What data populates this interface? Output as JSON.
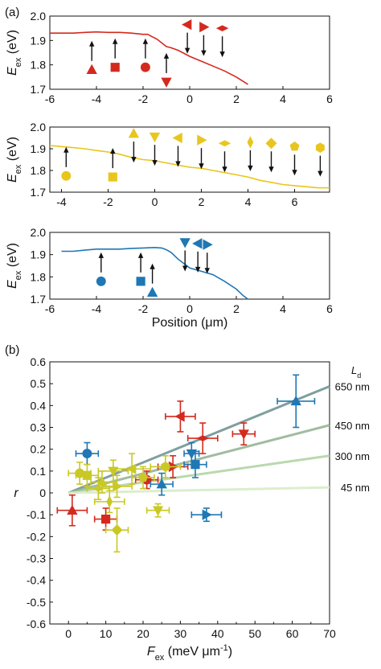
{
  "colors": {
    "red": "#d42a1e",
    "yellow": "#e9c61d",
    "blue": "#1f77b4",
    "yellowgreen": "#c9c826",
    "line_gray": "#7f9f9f"
  },
  "panel_labels": {
    "a": "(a)",
    "b": "(b)"
  },
  "chart_data": [
    {
      "type": "line",
      "title": "",
      "xlabel": "",
      "ylabel_main": "E",
      "ylabel_sub": "ex",
      "ylabel_unit": " (eV)",
      "xlim": [
        -6,
        6
      ],
      "ylim": [
        1.7,
        2.0
      ],
      "xticks": [
        -6,
        -4,
        -2,
        0,
        2,
        4,
        6
      ],
      "yticks": [
        "1.7",
        "1.8",
        "1.9",
        "2.0"
      ],
      "color": "#d42a1e",
      "x": [
        -6.0,
        -5.0,
        -4.5,
        -4.0,
        -3.5,
        -3.0,
        -2.5,
        -2.0,
        -1.8,
        -1.6,
        -1.4,
        -1.2,
        -1.0,
        -0.8,
        -0.5,
        -0.2,
        0.0,
        0.5,
        1.0,
        1.5,
        2.0,
        2.5
      ],
      "y": [
        1.93,
        1.93,
        1.933,
        1.935,
        1.933,
        1.933,
        1.93,
        1.925,
        1.925,
        1.915,
        1.905,
        1.89,
        1.875,
        1.87,
        1.86,
        1.845,
        1.835,
        1.815,
        1.795,
        1.775,
        1.75,
        1.72
      ],
      "markers": [
        {
          "x": -4.2,
          "y": 1.78,
          "shape": "triangle-up",
          "arrow": "up"
        },
        {
          "x": -3.2,
          "y": 1.79,
          "shape": "square",
          "arrow": "up"
        },
        {
          "x": -1.9,
          "y": 1.79,
          "shape": "circle",
          "arrow": "up"
        },
        {
          "x": -1.0,
          "y": 1.73,
          "shape": "triangle-down",
          "arrow": "up"
        },
        {
          "x": -0.1,
          "y": 1.965,
          "shape": "triangle-left",
          "arrow": "down"
        },
        {
          "x": 0.6,
          "y": 1.955,
          "shape": "triangle-right",
          "arrow": "down"
        },
        {
          "x": 1.4,
          "y": 1.95,
          "shape": "bowtie",
          "arrow": "down"
        }
      ]
    },
    {
      "type": "line",
      "title": "",
      "xlabel": "",
      "ylabel_main": "E",
      "ylabel_sub": "ex",
      "ylabel_unit": " (eV)",
      "xlim": [
        -4.5,
        7.5
      ],
      "ylim": [
        1.7,
        2.0
      ],
      "xticks": [
        -4,
        -2,
        0,
        2,
        4,
        6
      ],
      "yticks": [
        "1.7",
        "1.8",
        "1.9",
        "2.0"
      ],
      "color": "#e9c61d",
      "x": [
        -4.5,
        -4.0,
        -3.5,
        -3.0,
        -2.5,
        -2.0,
        -1.5,
        -1.0,
        -0.5,
        0.0,
        0.5,
        1.0,
        1.5,
        2.0,
        2.5,
        3.0,
        3.5,
        4.0,
        4.5,
        5.0,
        5.5,
        6.0,
        6.5,
        7.0,
        7.5
      ],
      "y": [
        1.915,
        1.91,
        1.905,
        1.9,
        1.892,
        1.885,
        1.875,
        1.86,
        1.85,
        1.845,
        1.835,
        1.825,
        1.815,
        1.81,
        1.8,
        1.79,
        1.78,
        1.77,
        1.755,
        1.745,
        1.735,
        1.73,
        1.725,
        1.72,
        1.72
      ],
      "markers": [
        {
          "x": -3.8,
          "y": 1.775,
          "shape": "circle",
          "arrow": "up"
        },
        {
          "x": -1.8,
          "y": 1.77,
          "shape": "square",
          "arrow": "up"
        },
        {
          "x": -0.9,
          "y": 1.97,
          "shape": "triangle-up",
          "arrow": "down"
        },
        {
          "x": 0.0,
          "y": 1.955,
          "shape": "triangle-down",
          "arrow": "down"
        },
        {
          "x": 1.0,
          "y": 1.95,
          "shape": "triangle-left",
          "arrow": "down"
        },
        {
          "x": 2.0,
          "y": 1.94,
          "shape": "triangle-right",
          "arrow": "down"
        },
        {
          "x": 3.0,
          "y": 1.925,
          "shape": "bowtie",
          "arrow": "down"
        },
        {
          "x": 4.1,
          "y": 1.93,
          "shape": "thin-diamond",
          "arrow": "down"
        },
        {
          "x": 5.0,
          "y": 1.925,
          "shape": "diamond",
          "arrow": "down"
        },
        {
          "x": 6.0,
          "y": 1.91,
          "shape": "pentagon",
          "arrow": "down"
        },
        {
          "x": 7.1,
          "y": 1.905,
          "shape": "hexagon",
          "arrow": "down"
        }
      ]
    },
    {
      "type": "line",
      "title": "",
      "xlabel_main": "Position",
      "xlabel_unit": " (μm)",
      "ylabel_main": "E",
      "ylabel_sub": "ex",
      "ylabel_unit": " (eV)",
      "xlim": [
        -6,
        6
      ],
      "ylim": [
        1.7,
        2.0
      ],
      "xticks": [
        -6,
        -4,
        -2,
        0,
        2,
        4,
        6
      ],
      "yticks": [
        "1.7",
        "1.8",
        "1.9",
        "2.0"
      ],
      "color": "#1f77b4",
      "x": [
        -5.5,
        -5.0,
        -4.5,
        -4.0,
        -3.5,
        -3.0,
        -2.5,
        -2.0,
        -1.5,
        -1.2,
        -1.0,
        -0.8,
        -0.5,
        0.0,
        0.5,
        1.0,
        1.5,
        2.0,
        2.3,
        2.5
      ],
      "y": [
        1.915,
        1.915,
        1.92,
        1.925,
        1.925,
        1.925,
        1.928,
        1.93,
        1.932,
        1.93,
        1.922,
        1.91,
        1.88,
        1.84,
        1.825,
        1.81,
        1.78,
        1.745,
        1.715,
        1.7
      ],
      "markers": [
        {
          "x": -3.8,
          "y": 1.78,
          "shape": "circle",
          "arrow": "up"
        },
        {
          "x": -2.1,
          "y": 1.78,
          "shape": "square",
          "arrow": "up"
        },
        {
          "x": -1.6,
          "y": 1.73,
          "shape": "triangle-up",
          "arrow": "up"
        },
        {
          "x": -0.2,
          "y": 1.955,
          "shape": "triangle-down",
          "arrow": "down"
        },
        {
          "x": 0.35,
          "y": 1.95,
          "shape": "triangle-left",
          "arrow": "down"
        },
        {
          "x": 0.75,
          "y": 1.945,
          "shape": "triangle-right",
          "arrow": "down"
        }
      ]
    },
    {
      "type": "scatter",
      "title": "",
      "xlabel_main": "F",
      "xlabel_sub": "ex",
      "xlabel_unit": " (meV μm",
      "xlabel_sup": "-1",
      "xlabel_close": ")",
      "ylabel_main": "r",
      "xlim": [
        -5,
        70
      ],
      "ylim": [
        -0.6,
        0.6
      ],
      "xticks": [
        0,
        10,
        20,
        30,
        40,
        50,
        60,
        70
      ],
      "yticks": [
        "-0.6",
        "-0.5",
        "-0.4",
        "-0.3",
        "-0.2",
        "-0.1",
        "0",
        "0.1",
        "0.2",
        "0.3",
        "0.4",
        "0.5",
        "0.6"
      ],
      "legend_title_main": "L",
      "legend_title_sub": "d",
      "fit_lines": [
        {
          "label": "650 nm",
          "slope": 0.00697,
          "color": "#7f9f9f",
          "opacity": 1.0
        },
        {
          "label": "450 nm",
          "slope": 0.00443,
          "color": "#90b090",
          "opacity": 0.85
        },
        {
          "label": "300 nm",
          "slope": 0.00243,
          "color": "#a8d09a",
          "opacity": 0.8
        },
        {
          "label": "45 nm",
          "slope": 0.00036,
          "color": "#d8ecc8",
          "opacity": 0.9
        }
      ],
      "points": [
        {
          "x": 61,
          "y": 0.42,
          "xerr": 5,
          "yerr": 0.12,
          "shape": "triangle-up",
          "color": "#1f77b4"
        },
        {
          "x": 47,
          "y": 0.27,
          "xerr": 3,
          "yerr": 0.05,
          "shape": "triangle-down",
          "color": "#d42a1e"
        },
        {
          "x": 36,
          "y": 0.25,
          "xerr": 4,
          "yerr": 0.07,
          "shape": "bowtie",
          "color": "#d42a1e"
        },
        {
          "x": 30,
          "y": 0.35,
          "xerr": 4,
          "yerr": 0.07,
          "shape": "triangle-left",
          "color": "#d42a1e"
        },
        {
          "x": 28,
          "y": 0.12,
          "xerr": 4,
          "yerr": 0.05,
          "shape": "triangle-right",
          "color": "#d42a1e"
        },
        {
          "x": 21,
          "y": 0.06,
          "xerr": 3,
          "yerr": 0.04,
          "shape": "circle",
          "color": "#d42a1e"
        },
        {
          "x": 10,
          "y": -0.12,
          "xerr": 3,
          "yerr": 0.05,
          "shape": "square",
          "color": "#d42a1e"
        },
        {
          "x": 1,
          "y": -0.08,
          "xerr": 4,
          "yerr": 0.07,
          "shape": "triangle-up",
          "color": "#d42a1e"
        },
        {
          "x": 5,
          "y": 0.18,
          "xerr": 3,
          "yerr": 0.05,
          "shape": "circle",
          "color": "#1f77b4"
        },
        {
          "x": 33,
          "y": 0.18,
          "xerr": 2,
          "yerr": 0.05,
          "shape": "triangle-down",
          "color": "#1f77b4"
        },
        {
          "x": 34,
          "y": 0.13,
          "xerr": 3,
          "yerr": 0.06,
          "shape": "square",
          "color": "#1f77b4"
        },
        {
          "x": 25,
          "y": 0.04,
          "xerr": 3,
          "yerr": 0.05,
          "shape": "triangle-up",
          "color": "#1f77b4"
        },
        {
          "x": 37,
          "y": -0.1,
          "xerr": 4,
          "yerr": 0.03,
          "shape": "triangle-right",
          "color": "#1f77b4"
        },
        {
          "x": 3,
          "y": 0.09,
          "xerr": 3,
          "yerr": 0.05,
          "shape": "circle",
          "color": "#c9c826"
        },
        {
          "x": 5,
          "y": 0.08,
          "xerr": 3,
          "yerr": 0.05,
          "shape": "square",
          "color": "#c9c826"
        },
        {
          "x": 9,
          "y": 0.05,
          "xerr": 3,
          "yerr": 0.05,
          "shape": "triangle-up",
          "color": "#c9c826"
        },
        {
          "x": 12,
          "y": 0.1,
          "xerr": 4,
          "yerr": 0.05,
          "shape": "triangle-down",
          "color": "#c9c826"
        },
        {
          "x": 17,
          "y": 0.11,
          "xerr": 5,
          "yerr": 0.07,
          "shape": "triangle-left",
          "color": "#c9c826"
        },
        {
          "x": 13,
          "y": 0.03,
          "xerr": 4,
          "yerr": 0.05,
          "shape": "triangle-right",
          "color": "#c9c826"
        },
        {
          "x": 8,
          "y": 0.02,
          "xerr": 3,
          "yerr": 0.05,
          "shape": "bowtie",
          "color": "#c9c826"
        },
        {
          "x": 11,
          "y": -0.04,
          "xerr": 4,
          "yerr": 0.05,
          "shape": "thin-diamond",
          "color": "#c9c826"
        },
        {
          "x": 13,
          "y": -0.17,
          "xerr": 3,
          "yerr": 0.1,
          "shape": "diamond",
          "color": "#c9c826"
        },
        {
          "x": 20,
          "y": 0.07,
          "xerr": 3,
          "yerr": 0.05,
          "shape": "pentagon",
          "color": "#c9c826"
        },
        {
          "x": 26,
          "y": 0.12,
          "xerr": 4,
          "yerr": 0.05,
          "shape": "hexagon",
          "color": "#c9c826"
        },
        {
          "x": 24,
          "y": -0.08,
          "xerr": 3,
          "yerr": 0.03,
          "shape": "triangle-down",
          "color": "#c9c826"
        }
      ]
    }
  ]
}
